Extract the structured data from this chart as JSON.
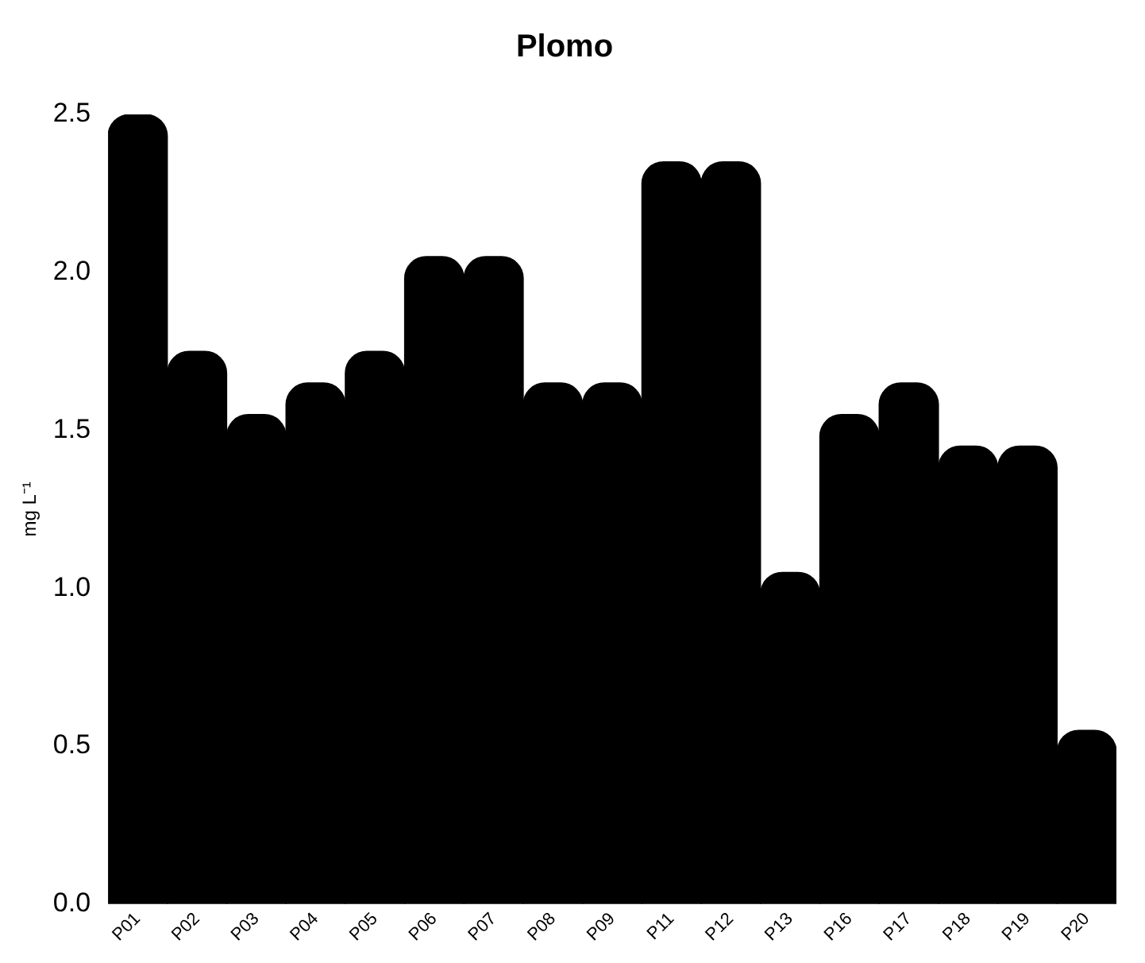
{
  "chart_data": {
    "type": "bar",
    "title": "Plomo",
    "ylabel": "mg L⁻¹",
    "categories": [
      "P01",
      "P02",
      "P03",
      "P04",
      "P05",
      "P06",
      "P07",
      "P08",
      "P09",
      "P11",
      "P12",
      "P13",
      "P16",
      "P17",
      "P18",
      "P19",
      "P20"
    ],
    "values": [
      2.5,
      1.75,
      1.55,
      1.65,
      1.75,
      2.05,
      2.05,
      1.65,
      1.65,
      2.35,
      2.35,
      1.05,
      1.55,
      1.65,
      1.45,
      1.45,
      0.55
    ],
    "color": "#000000",
    "ylim": [
      0,
      2.5
    ],
    "yticks": [
      {
        "value": 0,
        "label": "0.0"
      },
      {
        "value": 0.5,
        "label": "0.5"
      },
      {
        "value": 1,
        "label": "1.0"
      },
      {
        "value": 1.5,
        "label": "1.5"
      },
      {
        "value": 2,
        "label": "2.0"
      },
      {
        "value": 2.5,
        "label": "2.5"
      }
    ],
    "grid": false,
    "legend": false
  }
}
